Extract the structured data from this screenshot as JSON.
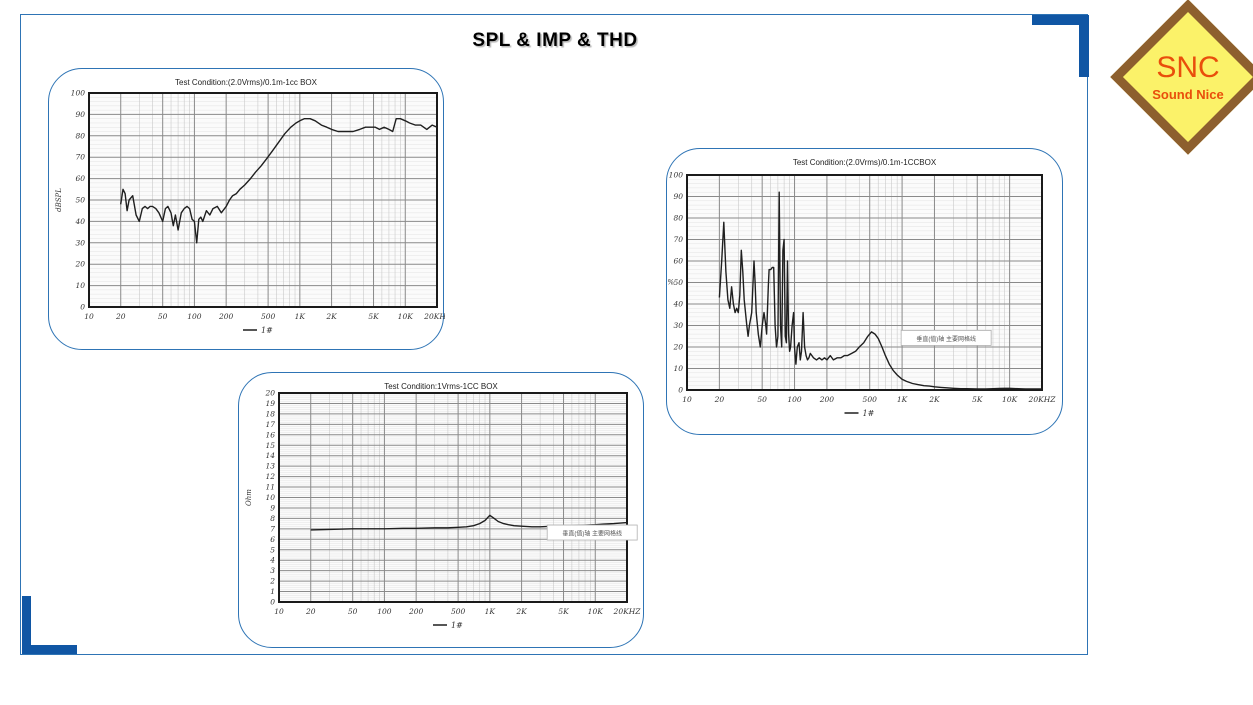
{
  "page": {
    "title": "SPL & IMP & THD",
    "border_color": "#2E74B5",
    "corner_color": "#1056A4"
  },
  "logo": {
    "text": "SNC",
    "subtext": "Sound Nice",
    "bg_color": "#FBF269",
    "border_color": "#8D5F2E",
    "text_color": "#E94E0B"
  },
  "chart_data": [
    {
      "id": "spl",
      "type": "line",
      "title": "Test Condition:(2.0Vrms)/0.1m-1cc BOX",
      "ylabel": "dBSPL",
      "ylim": [
        0,
        100
      ],
      "ystep": 10,
      "yminor": 2,
      "xlim": [
        10,
        20000
      ],
      "xscale": "log",
      "grid": true,
      "legend": "1#",
      "legend_position": "bottom-center",
      "xticks": [
        [
          10,
          "10"
        ],
        [
          20,
          "20"
        ],
        [
          50,
          "50"
        ],
        [
          100,
          "100"
        ],
        [
          200,
          "200"
        ],
        [
          500,
          "500"
        ],
        [
          1000,
          "1K"
        ],
        [
          2000,
          "2K"
        ],
        [
          5000,
          "5K"
        ],
        [
          10000,
          "10K"
        ],
        [
          20000,
          "20KHz"
        ]
      ],
      "annotation": null,
      "series": [
        {
          "name": "1#",
          "points": [
            [
              20,
              48
            ],
            [
              21,
              55
            ],
            [
              22,
              53
            ],
            [
              23,
              45
            ],
            [
              24,
              50
            ],
            [
              26,
              52
            ],
            [
              28,
              43
            ],
            [
              30,
              40
            ],
            [
              32,
              46
            ],
            [
              34,
              47
            ],
            [
              36,
              46
            ],
            [
              38,
              47
            ],
            [
              40,
              47
            ],
            [
              43,
              46
            ],
            [
              46,
              44
            ],
            [
              50,
              40
            ],
            [
              53,
              46
            ],
            [
              56,
              47
            ],
            [
              60,
              44
            ],
            [
              63,
              38
            ],
            [
              66,
              43
            ],
            [
              70,
              36
            ],
            [
              75,
              44
            ],
            [
              80,
              46
            ],
            [
              85,
              47
            ],
            [
              90,
              46
            ],
            [
              95,
              41
            ],
            [
              100,
              40
            ],
            [
              105,
              30
            ],
            [
              110,
              41
            ],
            [
              115,
              42
            ],
            [
              120,
              40
            ],
            [
              130,
              45
            ],
            [
              140,
              43
            ],
            [
              150,
              46
            ],
            [
              165,
              47
            ],
            [
              180,
              44
            ],
            [
              200,
              47
            ],
            [
              215,
              50
            ],
            [
              230,
              52
            ],
            [
              250,
              53
            ],
            [
              270,
              55
            ],
            [
              300,
              57
            ],
            [
              340,
              60
            ],
            [
              380,
              63
            ],
            [
              430,
              66
            ],
            [
              480,
              69
            ],
            [
              550,
              73
            ],
            [
              630,
              77
            ],
            [
              720,
              81
            ],
            [
              820,
              84
            ],
            [
              920,
              86
            ],
            [
              1000,
              87
            ],
            [
              1100,
              88
            ],
            [
              1250,
              88
            ],
            [
              1400,
              87
            ],
            [
              1600,
              85
            ],
            [
              1800,
              84
            ],
            [
              2000,
              83
            ],
            [
              2300,
              82
            ],
            [
              2700,
              82
            ],
            [
              3200,
              82
            ],
            [
              3700,
              83
            ],
            [
              4200,
              84
            ],
            [
              4700,
              84
            ],
            [
              5200,
              84
            ],
            [
              5700,
              83
            ],
            [
              6300,
              84
            ],
            [
              7000,
              83
            ],
            [
              7600,
              82
            ],
            [
              8200,
              88
            ],
            [
              9000,
              88
            ],
            [
              10000,
              87
            ],
            [
              11000,
              86
            ],
            [
              12500,
              85
            ],
            [
              14000,
              85
            ],
            [
              16000,
              83
            ],
            [
              18000,
              85
            ],
            [
              20000,
              84
            ]
          ]
        }
      ]
    },
    {
      "id": "thd",
      "type": "line",
      "title": "Test Condition:(2.0Vrms)/0.1m-1CCBOX",
      "ylabel": "%",
      "ylim": [
        0,
        100
      ],
      "ystep": 10,
      "yminor": 2,
      "xlim": [
        10,
        20000
      ],
      "xscale": "log",
      "grid": true,
      "legend": "1#",
      "legend_position": "bottom-center",
      "xticks": [
        [
          10,
          "10"
        ],
        [
          20,
          "20"
        ],
        [
          50,
          "50"
        ],
        [
          100,
          "100"
        ],
        [
          200,
          "200"
        ],
        [
          500,
          "500"
        ],
        [
          1000,
          "1K"
        ],
        [
          2000,
          "2K"
        ],
        [
          5000,
          "5K"
        ],
        [
          10000,
          "10K"
        ],
        [
          20000,
          "20KHZ"
        ]
      ],
      "annotation": {
        "text": "垂直(值)轴 主要网格线",
        "fx": 0.73,
        "fy": 0.76
      },
      "series": [
        {
          "name": "1#",
          "points": [
            [
              20,
              43
            ],
            [
              21,
              60
            ],
            [
              22,
              78
            ],
            [
              23,
              55
            ],
            [
              24,
              42
            ],
            [
              25,
              38
            ],
            [
              26,
              48
            ],
            [
              27,
              40
            ],
            [
              28,
              36
            ],
            [
              29,
              38
            ],
            [
              30,
              36
            ],
            [
              31,
              44
            ],
            [
              32,
              65
            ],
            [
              33,
              55
            ],
            [
              34,
              42
            ],
            [
              35,
              36
            ],
            [
              36,
              30
            ],
            [
              37,
              25
            ],
            [
              38,
              30
            ],
            [
              40,
              36
            ],
            [
              42,
              60
            ],
            [
              43,
              50
            ],
            [
              44,
              36
            ],
            [
              46,
              26
            ],
            [
              48,
              20
            ],
            [
              50,
              30
            ],
            [
              52,
              36
            ],
            [
              54,
              30
            ],
            [
              55,
              26
            ],
            [
              57,
              48
            ],
            [
              58,
              56
            ],
            [
              60,
              56
            ],
            [
              62,
              57
            ],
            [
              64,
              57
            ],
            [
              66,
              30
            ],
            [
              68,
              20
            ],
            [
              70,
              25
            ],
            [
              72,
              92
            ],
            [
              74,
              30
            ],
            [
              76,
              20
            ],
            [
              78,
              65
            ],
            [
              80,
              70
            ],
            [
              82,
              25
            ],
            [
              84,
              22
            ],
            [
              86,
              60
            ],
            [
              88,
              26
            ],
            [
              90,
              18
            ],
            [
              92,
              20
            ],
            [
              95,
              30
            ],
            [
              98,
              36
            ],
            [
              100,
              20
            ],
            [
              103,
              12
            ],
            [
              106,
              20
            ],
            [
              110,
              22
            ],
            [
              113,
              14
            ],
            [
              116,
              18
            ],
            [
              120,
              36
            ],
            [
              124,
              20
            ],
            [
              128,
              16
            ],
            [
              132,
              14
            ],
            [
              136,
              15
            ],
            [
              140,
              17
            ],
            [
              150,
              15
            ],
            [
              160,
              14
            ],
            [
              170,
              15
            ],
            [
              180,
              14
            ],
            [
              190,
              15
            ],
            [
              200,
              14
            ],
            [
              215,
              16
            ],
            [
              230,
              14
            ],
            [
              250,
              15
            ],
            [
              270,
              15
            ],
            [
              290,
              16
            ],
            [
              310,
              16
            ],
            [
              340,
              17
            ],
            [
              370,
              18
            ],
            [
              400,
              20
            ],
            [
              440,
              22
            ],
            [
              480,
              25
            ],
            [
              520,
              27
            ],
            [
              560,
              26
            ],
            [
              600,
              24
            ],
            [
              650,
              20
            ],
            [
              700,
              16
            ],
            [
              760,
              12
            ],
            [
              830,
              9
            ],
            [
              900,
              7
            ],
            [
              1000,
              5
            ],
            [
              1100,
              4
            ],
            [
              1250,
              3
            ],
            [
              1400,
              2.5
            ],
            [
              1600,
              2
            ],
            [
              1800,
              1.8
            ],
            [
              2000,
              1.5
            ],
            [
              2300,
              1.2
            ],
            [
              2600,
              1
            ],
            [
              3000,
              0.8
            ],
            [
              3500,
              0.6
            ],
            [
              4000,
              0.6
            ],
            [
              5000,
              0.5
            ],
            [
              6000,
              0.5
            ],
            [
              7000,
              0.6
            ],
            [
              8000,
              0.7
            ],
            [
              9000,
              0.8
            ],
            [
              10000,
              0.8
            ],
            [
              12000,
              0.6
            ],
            [
              14000,
              0.5
            ],
            [
              16000,
              0.5
            ],
            [
              18000,
              0.5
            ],
            [
              20000,
              0.5
            ]
          ]
        }
      ]
    },
    {
      "id": "imp",
      "type": "line",
      "title": "Test Condition:1Vrms-1CC BOX",
      "ylabel": "Ohm",
      "ylim": [
        0,
        20
      ],
      "ystep": 1,
      "yminor": 0.2,
      "xlim": [
        10,
        20000
      ],
      "xscale": "log",
      "grid": true,
      "legend": "1#",
      "legend_position": "bottom-center",
      "xticks": [
        [
          10,
          "10"
        ],
        [
          20,
          "20"
        ],
        [
          50,
          "50"
        ],
        [
          100,
          "100"
        ],
        [
          200,
          "200"
        ],
        [
          500,
          "500"
        ],
        [
          1000,
          "1K"
        ],
        [
          2000,
          "2K"
        ],
        [
          5000,
          "5K"
        ],
        [
          10000,
          "10K"
        ],
        [
          20000,
          "20KHZ"
        ]
      ],
      "annotation": {
        "text": "垂直(值)轴 主要网格线",
        "fx": 0.9,
        "fy": 0.67
      },
      "series": [
        {
          "name": "1#",
          "points": [
            [
              20,
              6.9
            ],
            [
              30,
              6.95
            ],
            [
              50,
              7.0
            ],
            [
              70,
              7.0
            ],
            [
              100,
              7.0
            ],
            [
              150,
              7.05
            ],
            [
              200,
              7.05
            ],
            [
              300,
              7.1
            ],
            [
              400,
              7.1
            ],
            [
              500,
              7.15
            ],
            [
              600,
              7.2
            ],
            [
              700,
              7.3
            ],
            [
              800,
              7.5
            ],
            [
              900,
              7.8
            ],
            [
              1000,
              8.3
            ],
            [
              1100,
              8.0
            ],
            [
              1200,
              7.7
            ],
            [
              1350,
              7.5
            ],
            [
              1500,
              7.4
            ],
            [
              1700,
              7.3
            ],
            [
              2000,
              7.25
            ],
            [
              2500,
              7.2
            ],
            [
              3000,
              7.2
            ],
            [
              4000,
              7.25
            ],
            [
              5000,
              7.3
            ],
            [
              6000,
              7.3
            ],
            [
              8000,
              7.35
            ],
            [
              10000,
              7.4
            ],
            [
              12000,
              7.45
            ],
            [
              15000,
              7.5
            ],
            [
              20000,
              7.6
            ]
          ]
        }
      ]
    }
  ]
}
